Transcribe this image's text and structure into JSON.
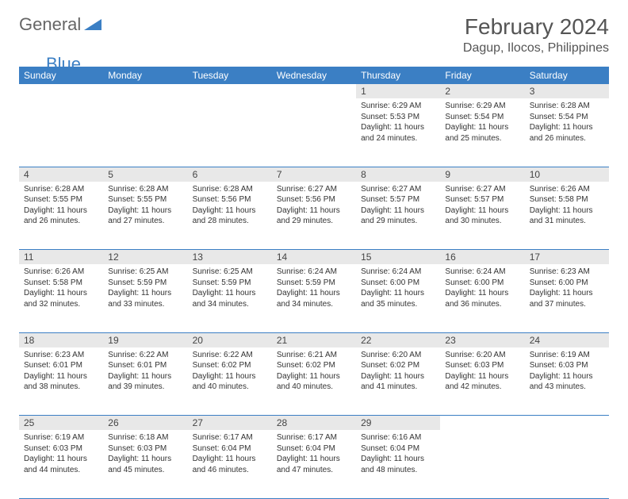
{
  "logo": {
    "part1": "General",
    "part2": "Blue"
  },
  "title": "February 2024",
  "location": "Dagup, Ilocos, Philippines",
  "colors": {
    "header_bg": "#3b7fc4",
    "header_text": "#ffffff",
    "daynum_bg": "#e8e8e8",
    "row_border": "#3b7fc4",
    "body_text": "#333333",
    "title_text": "#555555"
  },
  "weekdays": [
    "Sunday",
    "Monday",
    "Tuesday",
    "Wednesday",
    "Thursday",
    "Friday",
    "Saturday"
  ],
  "weeks": [
    [
      null,
      null,
      null,
      null,
      {
        "n": "1",
        "sunrise": "6:29 AM",
        "sunset": "5:53 PM",
        "dl": "11 hours and 24 minutes."
      },
      {
        "n": "2",
        "sunrise": "6:29 AM",
        "sunset": "5:54 PM",
        "dl": "11 hours and 25 minutes."
      },
      {
        "n": "3",
        "sunrise": "6:28 AM",
        "sunset": "5:54 PM",
        "dl": "11 hours and 26 minutes."
      }
    ],
    [
      {
        "n": "4",
        "sunrise": "6:28 AM",
        "sunset": "5:55 PM",
        "dl": "11 hours and 26 minutes."
      },
      {
        "n": "5",
        "sunrise": "6:28 AM",
        "sunset": "5:55 PM",
        "dl": "11 hours and 27 minutes."
      },
      {
        "n": "6",
        "sunrise": "6:28 AM",
        "sunset": "5:56 PM",
        "dl": "11 hours and 28 minutes."
      },
      {
        "n": "7",
        "sunrise": "6:27 AM",
        "sunset": "5:56 PM",
        "dl": "11 hours and 29 minutes."
      },
      {
        "n": "8",
        "sunrise": "6:27 AM",
        "sunset": "5:57 PM",
        "dl": "11 hours and 29 minutes."
      },
      {
        "n": "9",
        "sunrise": "6:27 AM",
        "sunset": "5:57 PM",
        "dl": "11 hours and 30 minutes."
      },
      {
        "n": "10",
        "sunrise": "6:26 AM",
        "sunset": "5:58 PM",
        "dl": "11 hours and 31 minutes."
      }
    ],
    [
      {
        "n": "11",
        "sunrise": "6:26 AM",
        "sunset": "5:58 PM",
        "dl": "11 hours and 32 minutes."
      },
      {
        "n": "12",
        "sunrise": "6:25 AM",
        "sunset": "5:59 PM",
        "dl": "11 hours and 33 minutes."
      },
      {
        "n": "13",
        "sunrise": "6:25 AM",
        "sunset": "5:59 PM",
        "dl": "11 hours and 34 minutes."
      },
      {
        "n": "14",
        "sunrise": "6:24 AM",
        "sunset": "5:59 PM",
        "dl": "11 hours and 34 minutes."
      },
      {
        "n": "15",
        "sunrise": "6:24 AM",
        "sunset": "6:00 PM",
        "dl": "11 hours and 35 minutes."
      },
      {
        "n": "16",
        "sunrise": "6:24 AM",
        "sunset": "6:00 PM",
        "dl": "11 hours and 36 minutes."
      },
      {
        "n": "17",
        "sunrise": "6:23 AM",
        "sunset": "6:00 PM",
        "dl": "11 hours and 37 minutes."
      }
    ],
    [
      {
        "n": "18",
        "sunrise": "6:23 AM",
        "sunset": "6:01 PM",
        "dl": "11 hours and 38 minutes."
      },
      {
        "n": "19",
        "sunrise": "6:22 AM",
        "sunset": "6:01 PM",
        "dl": "11 hours and 39 minutes."
      },
      {
        "n": "20",
        "sunrise": "6:22 AM",
        "sunset": "6:02 PM",
        "dl": "11 hours and 40 minutes."
      },
      {
        "n": "21",
        "sunrise": "6:21 AM",
        "sunset": "6:02 PM",
        "dl": "11 hours and 40 minutes."
      },
      {
        "n": "22",
        "sunrise": "6:20 AM",
        "sunset": "6:02 PM",
        "dl": "11 hours and 41 minutes."
      },
      {
        "n": "23",
        "sunrise": "6:20 AM",
        "sunset": "6:03 PM",
        "dl": "11 hours and 42 minutes."
      },
      {
        "n": "24",
        "sunrise": "6:19 AM",
        "sunset": "6:03 PM",
        "dl": "11 hours and 43 minutes."
      }
    ],
    [
      {
        "n": "25",
        "sunrise": "6:19 AM",
        "sunset": "6:03 PM",
        "dl": "11 hours and 44 minutes."
      },
      {
        "n": "26",
        "sunrise": "6:18 AM",
        "sunset": "6:03 PM",
        "dl": "11 hours and 45 minutes."
      },
      {
        "n": "27",
        "sunrise": "6:17 AM",
        "sunset": "6:04 PM",
        "dl": "11 hours and 46 minutes."
      },
      {
        "n": "28",
        "sunrise": "6:17 AM",
        "sunset": "6:04 PM",
        "dl": "11 hours and 47 minutes."
      },
      {
        "n": "29",
        "sunrise": "6:16 AM",
        "sunset": "6:04 PM",
        "dl": "11 hours and 48 minutes."
      },
      null,
      null
    ]
  ],
  "labels": {
    "sunrise": "Sunrise:",
    "sunset": "Sunset:",
    "daylight": "Daylight:"
  }
}
